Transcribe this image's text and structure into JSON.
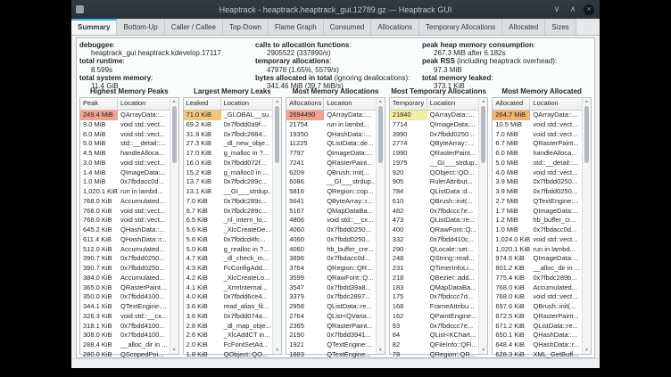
{
  "window": {
    "title": "Heaptrack - heaptrack.heaptrack_gui.12789.gz — Heaptrack GUI",
    "controls": {
      "minimize": "∨",
      "maximize": "∧",
      "close": "×"
    }
  },
  "tabs": [
    {
      "label": "Summary",
      "selected": true
    },
    {
      "label": "Bottom-Up",
      "selected": false
    },
    {
      "label": "Caller / Callee",
      "selected": false
    },
    {
      "label": "Top-Down",
      "selected": false
    },
    {
      "label": "Flame Graph",
      "selected": false
    },
    {
      "label": "Consumed",
      "selected": false
    },
    {
      "label": "Allocations",
      "selected": false
    },
    {
      "label": "Temporary Allocations",
      "selected": false
    },
    {
      "label": "Allocated",
      "selected": false
    },
    {
      "label": "Sizes",
      "selected": false
    }
  ],
  "summary": {
    "columns": [
      {
        "items": [
          {
            "label": "debuggee",
            "suffix": ":",
            "value": "heaptrack_gui heaptrack.kdevelop.17117"
          },
          {
            "label": "total runtime",
            "suffix": ":",
            "value": "8.599s"
          },
          {
            "label": "total system memory",
            "suffix": ":",
            "value": "11.4 GiB"
          }
        ]
      },
      {
        "items": [
          {
            "label": "calls to allocation functions",
            "suffix": ":",
            "value": "2905522 (337890/s)"
          },
          {
            "label": "temporary allocations",
            "suffix": ":",
            "value": "47978 (1.65%, 5579/s)"
          },
          {
            "label": "bytes allocated in total",
            "suffix": " (ignoring deallocations):",
            "value": "341.46 MiB (39.7 MiB/s)"
          }
        ]
      },
      {
        "items": [
          {
            "label": "peak heap memory consumption",
            "suffix": ":",
            "value": "267.3 MiB after 6.182s"
          },
          {
            "label": "peak RSS",
            "suffix": " (including heaptrack overhead):",
            "value": "97.3 MiB"
          },
          {
            "label": "total memory leaked",
            "suffix": ":",
            "value": "373.1 KiB"
          }
        ]
      }
    ]
  },
  "heat_colors": {
    "red": "#f4a18b",
    "orange": "#f2b368",
    "amber": "#f2c77d",
    "yellow": "#f4f0a0"
  },
  "tables": [
    {
      "title": "Highest Memory Peaks",
      "columns": [
        "Peak",
        "Location"
      ],
      "rows": [
        [
          "249.4 MiB",
          "QArrayData::...",
          "#f4a18b"
        ],
        [
          "9.0 MiB",
          "void std::vect..."
        ],
        [
          "6.0 MiB",
          "void std::vect..."
        ],
        [
          "5.0 MiB",
          "std::__detail::..."
        ],
        [
          "4.5 MiB",
          "handleAlloca..."
        ],
        [
          "3.0 MiB",
          "void std::vect..."
        ],
        [
          "1.4 MiB",
          "QImageData:..."
        ],
        [
          "1.0 MiB",
          "0x7fbdacc0d..."
        ],
        [
          "1,020.1 KiB",
          "run in lambd..."
        ],
        [
          "768.0 KiB",
          "Accumulated..."
        ],
        [
          "768.0 KiB",
          "void std::vect..."
        ],
        [
          "768.0 KiB",
          "void std::vect..."
        ],
        [
          "645.2 KiB",
          "QHashData::..."
        ],
        [
          "611.4 KiB",
          "QHashData::r..."
        ],
        [
          "512.0 KiB",
          "Accumulated..."
        ],
        [
          "390.7 KiB",
          "0x7fbdd0250..."
        ],
        [
          "390.7 KiB",
          "0x7fbdd0250..."
        ],
        [
          "384.0 KiB",
          "Accumulated..."
        ],
        [
          "365.0 KiB",
          "QRasterPaint..."
        ],
        [
          "350.0 KiB",
          "0x7fbdd4100..."
        ],
        [
          "344.1 KiB",
          "QTextEngine:..."
        ],
        [
          "326.3 KiB",
          "void std::__cx..."
        ],
        [
          "318.1 KiB",
          "0x7fbdd4100..."
        ],
        [
          "308.0 KiB",
          "0x7fbdd4100..."
        ],
        [
          "288.4 KiB",
          "__alloc_dir in ..."
        ],
        [
          "280.0 KiB",
          "QScopedPoi..."
        ]
      ]
    },
    {
      "title": "Largest Memory Leaks",
      "columns": [
        "Leaked",
        "Location"
      ],
      "rows": [
        [
          "71.0 KiB",
          "_GLOBAL__su...",
          "#f2c77d"
        ],
        [
          "69.2 KiB",
          "0x7fbdd0a9f..."
        ],
        [
          "31.9 KiB",
          "0x7fbdc2884..."
        ],
        [
          "27.3 KiB",
          "_dl_new_obje..."
        ],
        [
          "17.0 KiB",
          "g_malloc in ?..."
        ],
        [
          "16.0 KiB",
          "0x7fbdd072f..."
        ],
        [
          "15.2 KiB",
          "g_malloc0 in ..."
        ],
        [
          "13.7 KiB",
          "0x7fbdc289c..."
        ],
        [
          "13.1 KiB",
          "__GI___strdup..."
        ],
        [
          "7.0 KiB",
          "0x7fbdc289c..."
        ],
        [
          "6.7 KiB",
          "0x7fbdc289c..."
        ],
        [
          "6.5 KiB",
          "_nl_intern_lo..."
        ],
        [
          "5.6 KiB",
          "_XlcCreateDe..."
        ],
        [
          "5.6 KiB",
          "0x7fbdcd4fc..."
        ],
        [
          "5.0 KiB",
          "g_realloc in ?..."
        ],
        [
          "4.7 KiB",
          "_dl_check_m..."
        ],
        [
          "4.3 KiB",
          "FcConfigAdd..."
        ],
        [
          "4.2 KiB",
          "_XlcCreateLo..."
        ],
        [
          "4.1 KiB",
          "_XrmInternal..."
        ],
        [
          "4.0 KiB",
          "0x7fbdd6ce4..."
        ],
        [
          "3.6 KiB",
          "read_alias_fil..."
        ],
        [
          "3.6 KiB",
          "0x7fbdd074a..."
        ],
        [
          "2.8 KiB",
          "_dl_map_obje..."
        ],
        [
          "2.6 KiB",
          "_XlcAddCT in..."
        ],
        [
          "2.0 KiB",
          "FcFontSetAd..."
        ],
        [
          "1.8 KiB",
          "QObject::QO..."
        ]
      ]
    },
    {
      "title": "Most Memory Allocations",
      "columns": [
        "Allocations",
        "Location"
      ],
      "rows": [
        [
          "2694490",
          "QArrayData::...",
          "#f4a18b"
        ],
        [
          "21754",
          "run in lambd..."
        ],
        [
          "19350",
          "QHashData::..."
        ],
        [
          "11225",
          "QListData::de..."
        ],
        [
          "7797",
          "QImageData:..."
        ],
        [
          "7241",
          "QRasterPaint..."
        ],
        [
          "6209",
          "QBrush::init(..."
        ],
        [
          "6086",
          "__GI___strdup..."
        ],
        [
          "5816",
          "QRegion::cop..."
        ],
        [
          "5641",
          "QByteArray::r..."
        ],
        [
          "5167",
          "QMapDataBa..."
        ],
        [
          "4806",
          "void std::__cx..."
        ],
        [
          "4060",
          "0x7fbdd0250..."
        ],
        [
          "4060",
          "0x7fbdd0250..."
        ],
        [
          "4060",
          "hb_buffer_cre..."
        ],
        [
          "3896",
          "0x7fbdacc0d..."
        ],
        [
          "3764",
          "QRegion::QR..."
        ],
        [
          "3599",
          "QRawFont::Q..."
        ],
        [
          "3547",
          "0x7fbdd39a8..."
        ],
        [
          "3379",
          "0x7fbdc2897..."
        ],
        [
          "2958",
          "QListData::re..."
        ],
        [
          "2764",
          "QList<QVaria..."
        ],
        [
          "2365",
          "QRasterPaint..."
        ],
        [
          "2190",
          "0x7fbdd3941..."
        ],
        [
          "1921",
          "QTextEngine:..."
        ],
        [
          "1883",
          "QTextEngine..."
        ]
      ]
    },
    {
      "title": "Most Temporary Allocations",
      "columns": [
        "Temporary",
        "Location"
      ],
      "rows": [
        [
          "21840",
          "QArrayData::...",
          "#f4f0a0"
        ],
        [
          "7714",
          "QImageData:..."
        ],
        [
          "3990",
          "0x7fbdd0250..."
        ],
        [
          "2774",
          "QByteArray::..."
        ],
        [
          "1990",
          "QRasterPaint..."
        ],
        [
          "1975",
          "__GI___strdup..."
        ],
        [
          "920",
          "QObject::QO..."
        ],
        [
          "905",
          "RulerAttribut..."
        ],
        [
          "784",
          "QListData::d..."
        ],
        [
          "610",
          "QBrush::init(..."
        ],
        [
          "482",
          "0x7fbdccc7e..."
        ],
        [
          "473",
          "QListData::re..."
        ],
        [
          "400",
          "QRawFont::Q..."
        ],
        [
          "332",
          "0x7fbdd410c..."
        ],
        [
          "290",
          "QLocale::set..."
        ],
        [
          "248",
          "QString::reall..."
        ],
        [
          "231",
          "QTimerInfoLi..."
        ],
        [
          "218",
          "QBezier::add..."
        ],
        [
          "183",
          "QMapDataBa..."
        ],
        [
          "175",
          "0x7fbdccc7d..."
        ],
        [
          "168",
          "FrameAttribu..."
        ],
        [
          "162",
          "QPaintEngine..."
        ],
        [
          "93",
          "0x7fbdccc7e..."
        ],
        [
          "84",
          "QList<KChart..."
        ],
        [
          "82",
          "QFileInfo::QFi..."
        ],
        [
          "78",
          "QRegion::QR..."
        ]
      ]
    },
    {
      "title": "Most Memory Allocated",
      "columns": [
        "Allocated",
        "Location"
      ],
      "rows": [
        [
          "264.7 MiB",
          "QArrayData::...",
          "#f2b368"
        ],
        [
          "10.5 MiB",
          "void std::vect..."
        ],
        [
          "7.0 MiB",
          "void std::vect..."
        ],
        [
          "6.7 MiB",
          "QRasterPaint..."
        ],
        [
          "6.0 MiB",
          "handleAlloca..."
        ],
        [
          "5.0 MiB",
          "std::__detail::..."
        ],
        [
          "4.0 MiB",
          "void std::vect..."
        ],
        [
          "3.9 MiB",
          "0x7fbdd0250..."
        ],
        [
          "3.9 MiB",
          "0x7fbdd0250..."
        ],
        [
          "2.7 MiB",
          "QTextEngine:..."
        ],
        [
          "1.7 MiB",
          "QImageData:..."
        ],
        [
          "1.2 MiB",
          "hb_buffer_cr..."
        ],
        [
          "1.0 MiB",
          "0x7fbdacc0d..."
        ],
        [
          "1,024.0 KiB",
          "void std::vect..."
        ],
        [
          "1,020.1 KiB",
          "run in lambd..."
        ],
        [
          "974.6 KiB",
          "QImageData:..."
        ],
        [
          "801.2 KiB",
          "__alloc_dir in ..."
        ],
        [
          "775.4 KiB",
          "0x7fbdc289b..."
        ],
        [
          "768.0 KiB",
          "Accumulated..."
        ],
        [
          "768.0 KiB",
          "void std::vect..."
        ],
        [
          "697.6 KiB",
          "QBrush::init(..."
        ],
        [
          "672.5 KiB",
          "QRasterPaint..."
        ],
        [
          "671.2 KiB",
          "QListData::re..."
        ],
        [
          "650.1 KiB",
          "QHashData::..."
        ],
        [
          "648.4 KiB",
          "QHashData::r..."
        ],
        [
          "628.3 KiB",
          "XML_GetBuff..."
        ]
      ]
    }
  ]
}
